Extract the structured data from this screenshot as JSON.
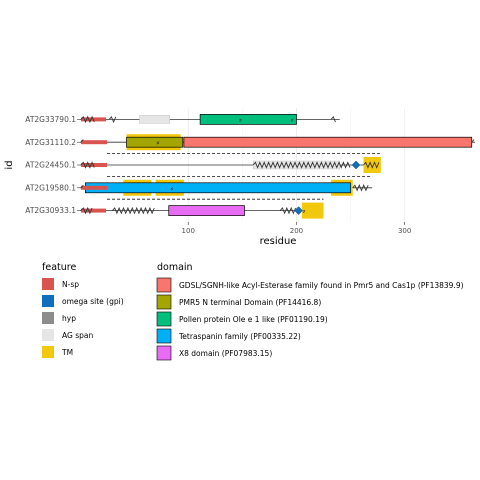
{
  "chart_data": {
    "type": "protein-domain-map",
    "xlabel": "residue",
    "ylabel": "id",
    "xlim": [
      0,
      365
    ],
    "xticks": [
      100,
      200,
      300
    ],
    "grid": true,
    "legend_placement": "bottom",
    "proteins": [
      {
        "id": "AT2G33790.1",
        "length": 240,
        "domains": [
          {
            "legend": "Pollen protein Ole e 1 like (PF01190.19)",
            "start": 111,
            "end": 200
          }
        ],
        "features": [
          {
            "type": "N-sp",
            "start": 1,
            "end": 24
          },
          {
            "type": "AG span",
            "start": 55,
            "end": 83
          }
        ],
        "glyco_marks": [
          148,
          196
        ],
        "wavy_segments": [
          [
            1,
            14
          ],
          [
            27,
            35
          ],
          [
            232,
            238
          ]
        ]
      },
      {
        "id": "AT2G31110.2",
        "length": 365,
        "domains": [
          {
            "legend": "PMR5 N terminal Domain (PF14416.8)",
            "start": 43,
            "end": 95
          },
          {
            "legend": "GDSL/SGNH-like Acyl-Esterase family found in Pmr5 and Cas1p (PF13839.9)",
            "start": 96,
            "end": 362
          }
        ],
        "features": [
          {
            "type": "N-sp",
            "start": 1,
            "end": 25
          },
          {
            "type": "TM",
            "start": 43,
            "end": 93
          }
        ],
        "glyco_marks": [
          72
        ],
        "wavy_segments": [
          [
            1,
            5
          ],
          [
            362,
            365
          ]
        ]
      },
      {
        "id": "AT2G24450.1",
        "length": 278,
        "domains": [],
        "features": [
          {
            "type": "N-sp",
            "start": 1,
            "end": 25
          },
          {
            "type": "TM",
            "start": 262,
            "end": 278
          },
          {
            "type": "AG span",
            "start": 160,
            "end": 240
          }
        ],
        "glyco_marks": [],
        "omega_site": 255,
        "wavy_segments": [
          [
            1,
            14
          ],
          [
            160,
            250
          ],
          [
            262,
            278
          ]
        ]
      },
      {
        "id": "AT2G19580.1",
        "length": 270,
        "domains": [
          {
            "legend": "Tetraspanin family (PF00335.22)",
            "start": 5,
            "end": 250
          }
        ],
        "features": [
          {
            "type": "N-sp",
            "start": 1,
            "end": 25
          },
          {
            "type": "TM",
            "start": 40,
            "end": 66
          },
          {
            "type": "TM",
            "start": 70,
            "end": 96
          },
          {
            "type": "TM",
            "start": 232,
            "end": 252
          }
        ],
        "glyco_marks": [
          85
        ],
        "wavy_segments": [
          [
            1,
            5
          ],
          [
            252,
            268
          ]
        ]
      },
      {
        "id": "AT2G30933.1",
        "length": 225,
        "domains": [
          {
            "legend": "X8 domain (PF07983.15)",
            "start": 82,
            "end": 152
          }
        ],
        "features": [
          {
            "type": "N-sp",
            "start": 1,
            "end": 24
          },
          {
            "type": "TM",
            "start": 205,
            "end": 225
          }
        ],
        "glyco_marks": [
          207
        ],
        "omega_site": 202,
        "wavy_segments": [
          [
            1,
            12
          ],
          [
            30,
            70
          ],
          [
            185,
            200
          ]
        ]
      }
    ],
    "span_lines": [
      {
        "protein": "AT2G24450.1",
        "from": 25,
        "to": 278
      },
      {
        "protein": "AT2G19580.1",
        "from": 25,
        "to": 270
      },
      {
        "protein": "AT2G30933.1",
        "from": 25,
        "to": 225
      }
    ],
    "legends": [
      {
        "title": "feature",
        "items": [
          {
            "label": "N-sp",
            "color": "#d9534f"
          },
          {
            "label": "omega site (gpi)",
            "color": "#0e6fbf"
          },
          {
            "label": "hyp",
            "color": "#8c8c8c"
          },
          {
            "label": "AG span",
            "color": "#e6e6e6"
          },
          {
            "label": "TM",
            "color": "#f2c80f"
          }
        ]
      },
      {
        "title": "domain",
        "items": [
          {
            "label": "GDSL/SGNH-like Acyl-Esterase family found in Pmr5 and Cas1p (PF13839.9)",
            "color": "#f8766d"
          },
          {
            "label": "PMR5 N terminal Domain (PF14416.8)",
            "color": "#a3a500"
          },
          {
            "label": "Pollen protein Ole e 1 like (PF01190.19)",
            "color": "#00bf7d"
          },
          {
            "label": "Tetraspanin family (PF00335.22)",
            "color": "#00b0f6"
          },
          {
            "label": "X8 domain (PF07983.15)",
            "color": "#e76bf3"
          }
        ]
      }
    ]
  }
}
